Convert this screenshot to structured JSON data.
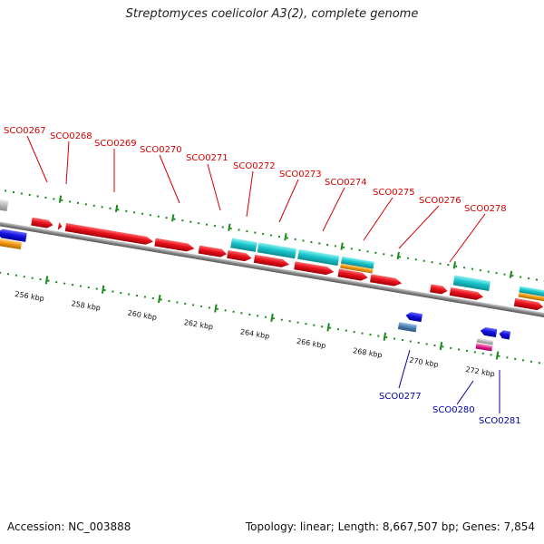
{
  "title": "Streptomyces coelicolor A3(2), complete genome",
  "accession": "Accession: NC_003888",
  "summary": "Topology: linear; Length: 8,667,507 bp; Genes: 7,854",
  "colors": {
    "forward_gene": "#e8101c",
    "reverse_gene": "#1414e0",
    "cyan_feature": "#19c6cc",
    "orange_feature": "#f59a10",
    "steel_feature": "#4a7db0",
    "pink_feature": "#e0208a",
    "gray_feature": "#b8b8b8",
    "label_top": "#d40000",
    "label_bottom": "#0000aa",
    "tick": "#1a8a1a",
    "backbone": "#888888"
  },
  "kbp_ticks": [
    "256 kbp",
    "258 kbp",
    "260 kbp",
    "262 kbp",
    "264 kbp",
    "266 kbp",
    "268 kbp",
    "270 kbp",
    "272 kbp"
  ],
  "top_labels": [
    "SCO0267",
    "SCO0268",
    "SCO0269",
    "SCO0270",
    "SCO0271",
    "SCO0272",
    "SCO0273",
    "SCO0274",
    "SCO0275",
    "SCO0276",
    "SCO0278"
  ],
  "bottom_labels": [
    "SCO0277",
    "SCO0280",
    "SCO0281"
  ]
}
